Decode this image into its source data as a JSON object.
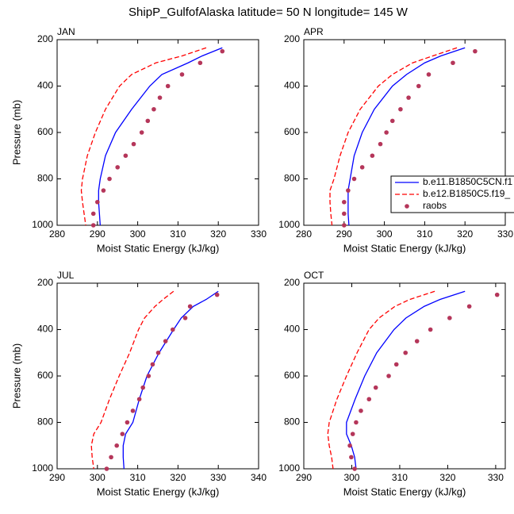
{
  "title": "ShipP_GulfofAlaska  latitude= 50 N longitude= 145 W",
  "chart_data": [
    {
      "type": "line",
      "title": "JAN",
      "xlabel": "Moist Static Energy (kJ/kg)",
      "ylabel": "Pressure (mb)",
      "xlim": [
        280,
        330
      ],
      "xticks": [
        280,
        290,
        300,
        310,
        320,
        330
      ],
      "ylim": [
        200,
        1000
      ],
      "yticks": [
        200,
        400,
        600,
        800,
        1000
      ],
      "y_reversed": true,
      "series": [
        {
          "color": "#0000ff",
          "style": "solid",
          "y": [
            235,
            270,
            300,
            350,
            400,
            500,
            600,
            700,
            800,
            850,
            900,
            950,
            1000
          ],
          "values": [
            321,
            316,
            312.5,
            306,
            303,
            298.5,
            294.5,
            292,
            290.7,
            290.3,
            290.3,
            290.5,
            290.7
          ]
        },
        {
          "color": "#ff0000",
          "style": "dashed",
          "y": [
            235,
            270,
            300,
            350,
            400,
            500,
            600,
            700,
            800,
            850,
            900,
            950,
            1000
          ],
          "values": [
            317,
            311,
            304.5,
            298.5,
            295.5,
            292,
            289.5,
            287.5,
            286.3,
            286,
            286.3,
            286.7,
            287.1
          ]
        },
        {
          "color": "#b5365a",
          "style": "dots",
          "y": [
            250,
            300,
            350,
            400,
            450,
            500,
            550,
            600,
            650,
            700,
            750,
            800,
            850,
            900,
            950,
            1000
          ],
          "values": [
            321,
            315.5,
            311,
            307.5,
            305.5,
            304,
            302.5,
            301,
            299,
            297,
            295,
            293,
            291.5,
            290,
            289,
            289
          ]
        }
      ]
    },
    {
      "type": "line",
      "title": "APR",
      "xlabel": "Moist Static Energy (kJ/kg)",
      "xlim": [
        280,
        330
      ],
      "xticks": [
        280,
        290,
        300,
        310,
        320,
        330
      ],
      "ylim": [
        200,
        1000
      ],
      "yticks": [
        200,
        400,
        600,
        800,
        1000
      ],
      "y_reversed": true,
      "legend": "right",
      "series": [
        {
          "name": "b.e11.B1850C5CN.f1",
          "color": "#0000ff",
          "style": "solid",
          "y": [
            235,
            270,
            300,
            350,
            400,
            500,
            600,
            700,
            800,
            850,
            900,
            950,
            1000
          ],
          "values": [
            320,
            314,
            310,
            305.5,
            302,
            297.5,
            294.5,
            292.5,
            291.5,
            291,
            291,
            291,
            291.2
          ]
        },
        {
          "name": "b.e12.B1850C5.f19_",
          "color": "#ff0000",
          "style": "dashed",
          "y": [
            235,
            270,
            300,
            350,
            400,
            500,
            600,
            700,
            800,
            850,
            900,
            950,
            1000
          ],
          "values": [
            318,
            312,
            307,
            302,
            298.5,
            294,
            291,
            289,
            287.5,
            286.5,
            286.5,
            286.7,
            287
          ]
        },
        {
          "name": "raobs",
          "color": "#b5365a",
          "style": "dots",
          "y": [
            250,
            300,
            350,
            400,
            450,
            500,
            550,
            600,
            650,
            700,
            750,
            800,
            850,
            900,
            950,
            1000
          ],
          "values": [
            322.5,
            317,
            311,
            308.5,
            306,
            304,
            302,
            300.5,
            299,
            297,
            294.5,
            292.5,
            291,
            290,
            290,
            290
          ]
        }
      ]
    },
    {
      "type": "line",
      "title": "JUL",
      "xlabel": "Moist Static Energy (kJ/kg)",
      "ylabel": "Pressure (mb)",
      "xlim": [
        290,
        340
      ],
      "xticks": [
        290,
        300,
        310,
        320,
        330,
        340
      ],
      "ylim": [
        200,
        1000
      ],
      "yticks": [
        200,
        400,
        600,
        800,
        1000
      ],
      "y_reversed": true,
      "series": [
        {
          "color": "#0000ff",
          "style": "solid",
          "y": [
            235,
            270,
            300,
            350,
            400,
            500,
            600,
            700,
            800,
            850,
            900,
            950,
            1000
          ],
          "values": [
            330,
            327,
            323.8,
            320.8,
            318.9,
            315.3,
            312.3,
            310.4,
            308.8,
            307,
            306.4,
            306.4,
            306.6
          ]
        },
        {
          "color": "#ff0000",
          "style": "dashed",
          "y": [
            235,
            270,
            300,
            350,
            400,
            500,
            600,
            700,
            800,
            850,
            900,
            950,
            1000
          ],
          "values": [
            318.9,
            316.3,
            314.3,
            311.7,
            310.2,
            308,
            305.4,
            303,
            300.9,
            299.1,
            298.5,
            298.7,
            299.1
          ]
        },
        {
          "color": "#b5365a",
          "style": "dots",
          "y": [
            250,
            300,
            350,
            400,
            450,
            500,
            550,
            600,
            650,
            700,
            750,
            800,
            850,
            900,
            950,
            1000
          ],
          "values": [
            329.7,
            323,
            321.8,
            318.7,
            316.9,
            315.1,
            313.7,
            312.7,
            311.3,
            310.4,
            308.8,
            307.4,
            306.2,
            304.8,
            303.4,
            302.3
          ]
        }
      ]
    },
    {
      "type": "line",
      "title": "OCT",
      "xlabel": "Moist Static Energy (kJ/kg)",
      "xlim": [
        290,
        332
      ],
      "xticks": [
        290,
        300,
        310,
        320,
        330
      ],
      "ylim": [
        200,
        1000
      ],
      "yticks": [
        200,
        400,
        600,
        800,
        1000
      ],
      "y_reversed": true,
      "series": [
        {
          "color": "#0000ff",
          "style": "solid",
          "y": [
            235,
            270,
            300,
            350,
            400,
            500,
            600,
            700,
            800,
            850,
            900,
            950,
            1000
          ],
          "values": [
            323.6,
            318.4,
            315.1,
            311.3,
            308.8,
            305.2,
            302.7,
            300.7,
            298.9,
            298.9,
            299.9,
            300.6,
            300.9
          ]
        },
        {
          "color": "#ff0000",
          "style": "dashed",
          "y": [
            235,
            270,
            300,
            350,
            400,
            500,
            600,
            700,
            800,
            850,
            900,
            950,
            1000
          ],
          "values": [
            317.3,
            312.1,
            309,
            305.7,
            303.6,
            301.1,
            298.9,
            296.9,
            295.3,
            295,
            295.3,
            295.8,
            296.1
          ]
        },
        {
          "color": "#b5365a",
          "style": "dots",
          "y": [
            250,
            300,
            350,
            400,
            450,
            500,
            550,
            600,
            650,
            700,
            750,
            800,
            850,
            900,
            950,
            1000
          ],
          "values": [
            330.3,
            324.5,
            320.4,
            316.4,
            313.6,
            311.2,
            309.3,
            307.7,
            305,
            303.6,
            301.9,
            300.9,
            300.2,
            299.6,
            299.9,
            300.6
          ]
        }
      ]
    }
  ]
}
